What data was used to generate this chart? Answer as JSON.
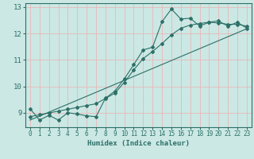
{
  "xlabel": "Humidex (Indice chaleur)",
  "bg_color": "#cbe8e4",
  "grid_color": "#e8b8b8",
  "line_color": "#2d7068",
  "spine_color": "#2d7068",
  "xlim": [
    -0.5,
    23.5
  ],
  "ylim": [
    8.45,
    13.15
  ],
  "yticks": [
    9,
    10,
    11,
    12,
    13
  ],
  "xticks": [
    0,
    1,
    2,
    3,
    4,
    5,
    6,
    7,
    8,
    9,
    10,
    11,
    12,
    13,
    14,
    15,
    16,
    17,
    18,
    19,
    20,
    21,
    22,
    23
  ],
  "series1_x": [
    0,
    1,
    2,
    3,
    4,
    5,
    6,
    7,
    8,
    9,
    10,
    11,
    12,
    13,
    14,
    15,
    16,
    17,
    18,
    19,
    20,
    21,
    22,
    23
  ],
  "series1_y": [
    9.15,
    8.72,
    8.9,
    8.72,
    9.0,
    8.95,
    8.88,
    8.85,
    9.55,
    9.82,
    10.28,
    10.82,
    11.38,
    11.48,
    12.45,
    12.93,
    12.55,
    12.58,
    12.28,
    12.43,
    12.48,
    12.28,
    12.43,
    12.2
  ],
  "series2_x": [
    0,
    1,
    2,
    3,
    4,
    5,
    6,
    7,
    8,
    9,
    10,
    11,
    12,
    13,
    14,
    15,
    16,
    17,
    18,
    19,
    20,
    21,
    22,
    23
  ],
  "series2_y": [
    8.85,
    8.92,
    8.99,
    9.06,
    9.13,
    9.2,
    9.27,
    9.34,
    9.54,
    9.74,
    10.15,
    10.62,
    11.05,
    11.32,
    11.62,
    11.95,
    12.2,
    12.32,
    12.38,
    12.43,
    12.4,
    12.35,
    12.35,
    12.28
  ],
  "series3_x": [
    0,
    23
  ],
  "series3_y": [
    8.72,
    12.18
  ]
}
